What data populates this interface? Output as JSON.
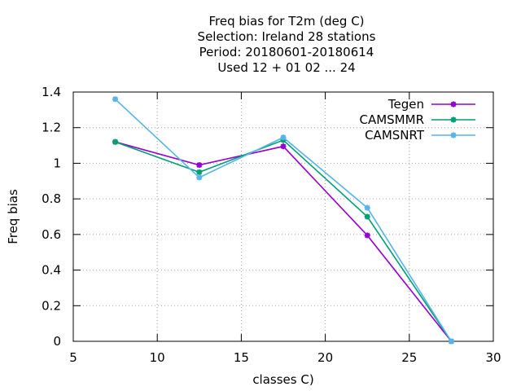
{
  "chart_data": {
    "type": "line",
    "title_lines": [
      "Freq bias  for T2m (deg C)",
      "Selection: Ireland      28 stations",
      "Period: 20180601-20180614",
      "Used  12 + 01 02 ... 24"
    ],
    "xlabel": "classes C)",
    "ylabel": "Freq bias",
    "xlim": [
      5,
      30
    ],
    "ylim": [
      0,
      1.4
    ],
    "xticks": [
      5,
      10,
      15,
      20,
      25,
      30
    ],
    "yticks": [
      0,
      0.2,
      0.4,
      0.6,
      0.8,
      1,
      1.2,
      1.4
    ],
    "ytick_labels": [
      "0",
      "0.2",
      "0.4",
      "0.6",
      "0.8",
      "1",
      "1.2",
      "1.4"
    ],
    "grid": true,
    "legend_position": "top-right",
    "x": [
      7.5,
      12.5,
      17.5,
      22.5,
      27.5
    ],
    "series": [
      {
        "name": "Tegen",
        "color": "#9400d3",
        "values": [
          1.12,
          0.99,
          1.095,
          0.595,
          0.0
        ]
      },
      {
        "name": "CAMSMMR",
        "color": "#009e73",
        "values": [
          1.12,
          0.95,
          1.13,
          0.7,
          0.0
        ]
      },
      {
        "name": "CAMSNRT",
        "color": "#56b4e9",
        "values": [
          1.36,
          0.92,
          1.145,
          0.75,
          0.0
        ]
      }
    ]
  }
}
